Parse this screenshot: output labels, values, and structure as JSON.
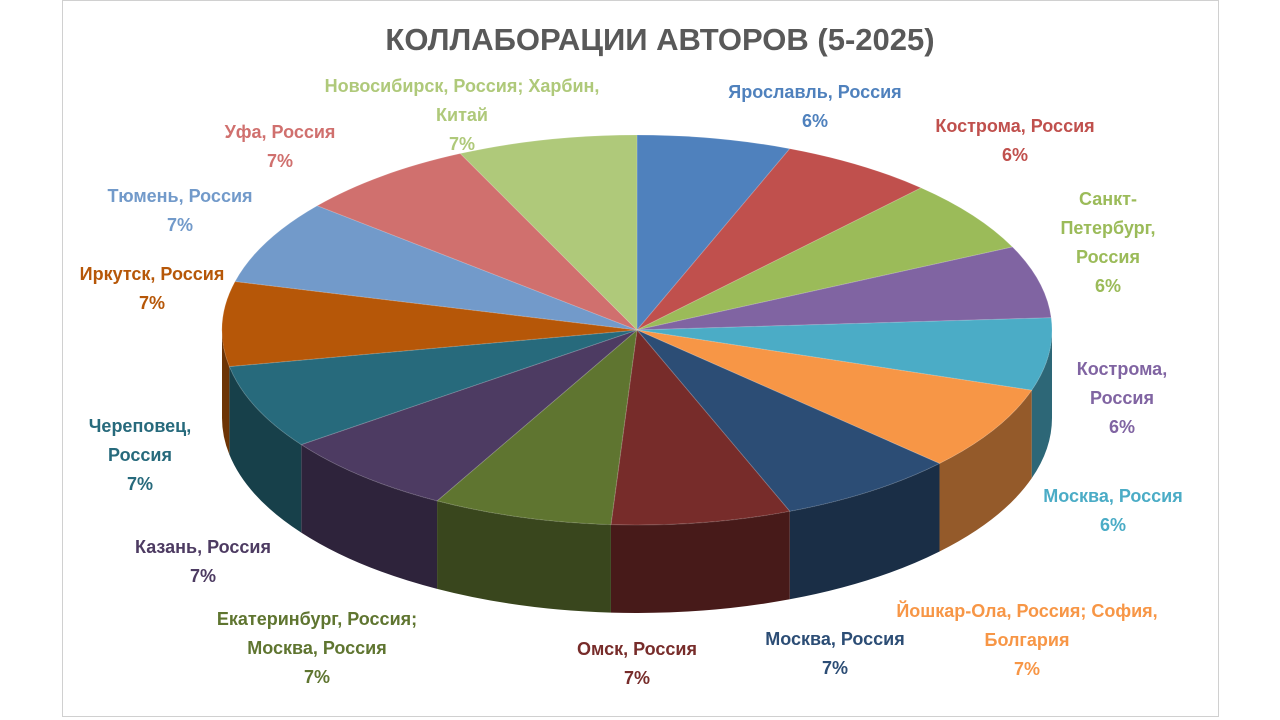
{
  "chart_data": {
    "type": "pie3d",
    "title": "КОЛЛАБОРАЦИИ АВТОРОВ (5-2025)",
    "categories": [
      "Ярославль, Россия",
      "Кострома, Россия",
      "Санкт-Петербург, Россия",
      "Кострома, Россия",
      "Москва, Россия",
      "Йошкар-Ола, Россия; София, Болгария",
      "Москва, Россия",
      "Омск, Россия",
      "Екатеринбург, Россия; Москва, Россия",
      "Казань, Россия",
      "Череповец, Россия",
      "Иркутск, Россия",
      "Тюмень, Россия",
      "Уфа, Россия",
      "Новосибирск, Россия; Харбин, Китай"
    ],
    "values": [
      6,
      6,
      6,
      6,
      6,
      7,
      7,
      7,
      7,
      7,
      7,
      7,
      7,
      7,
      7
    ],
    "value_labels": [
      "6%",
      "6%",
      "6%",
      "6%",
      "6%",
      "7%",
      "7%",
      "7%",
      "7%",
      "7%",
      "7%",
      "7%",
      "7%",
      "7%",
      "7%"
    ],
    "colors": [
      "#4f81bd",
      "#c0504d",
      "#9bbb59",
      "#8064a2",
      "#4bacc6",
      "#f79646",
      "#2c4d75",
      "#772c2a",
      "#5f7530",
      "#4d3b62",
      "#276a7c",
      "#b65708",
      "#729aca",
      "#d0706e",
      "#afc97a"
    ]
  }
}
